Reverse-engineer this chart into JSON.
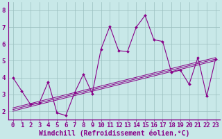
{
  "background_color": "#c8e8e8",
  "grid_color": "#9bbfbf",
  "line_color": "#880088",
  "marker_color": "#880088",
  "xlabel": "Windchill (Refroidissement éolien,°C)",
  "xlabel_fontsize": 7,
  "tick_label_fontsize": 6.5,
  "tick_color": "#880088",
  "axis_color": "#880088",
  "xlim_min": -0.5,
  "xlim_max": 23.5,
  "ylim_min": 1.5,
  "ylim_max": 8.5,
  "yticks": [
    2,
    3,
    4,
    5,
    6,
    7,
    8
  ],
  "xtick_labels": [
    "0",
    "1",
    "2",
    "3",
    "4",
    "5",
    "6",
    "7",
    "8",
    "9",
    "10",
    "11",
    "12",
    "13",
    "14",
    "15",
    "16",
    "17",
    "18",
    "19",
    "20",
    "21",
    "22",
    "23"
  ],
  "series_main": [
    4.0,
    3.2,
    2.4,
    2.5,
    3.75,
    1.9,
    1.75,
    3.1,
    4.2,
    3.05,
    5.7,
    7.05,
    5.6,
    5.55,
    7.0,
    7.7,
    6.25,
    6.15,
    4.3,
    4.45,
    3.6,
    5.2,
    2.9,
    5.1
  ],
  "series_reg1": [
    2.0,
    2.15,
    2.28,
    2.41,
    2.54,
    2.67,
    2.8,
    2.93,
    3.06,
    3.19,
    3.32,
    3.45,
    3.58,
    3.71,
    3.84,
    3.97,
    4.1,
    4.23,
    4.36,
    4.49,
    4.62,
    4.75,
    4.88,
    5.01
  ],
  "series_reg2": [
    2.1,
    2.24,
    2.37,
    2.5,
    2.63,
    2.76,
    2.89,
    3.02,
    3.15,
    3.28,
    3.41,
    3.54,
    3.67,
    3.8,
    3.93,
    4.06,
    4.19,
    4.32,
    4.45,
    4.58,
    4.71,
    4.84,
    4.97,
    5.1
  ],
  "series_reg3": [
    2.2,
    2.33,
    2.46,
    2.59,
    2.72,
    2.85,
    2.98,
    3.11,
    3.24,
    3.37,
    3.5,
    3.63,
    3.76,
    3.89,
    4.02,
    4.15,
    4.28,
    4.41,
    4.54,
    4.67,
    4.8,
    4.93,
    5.06,
    5.19
  ]
}
